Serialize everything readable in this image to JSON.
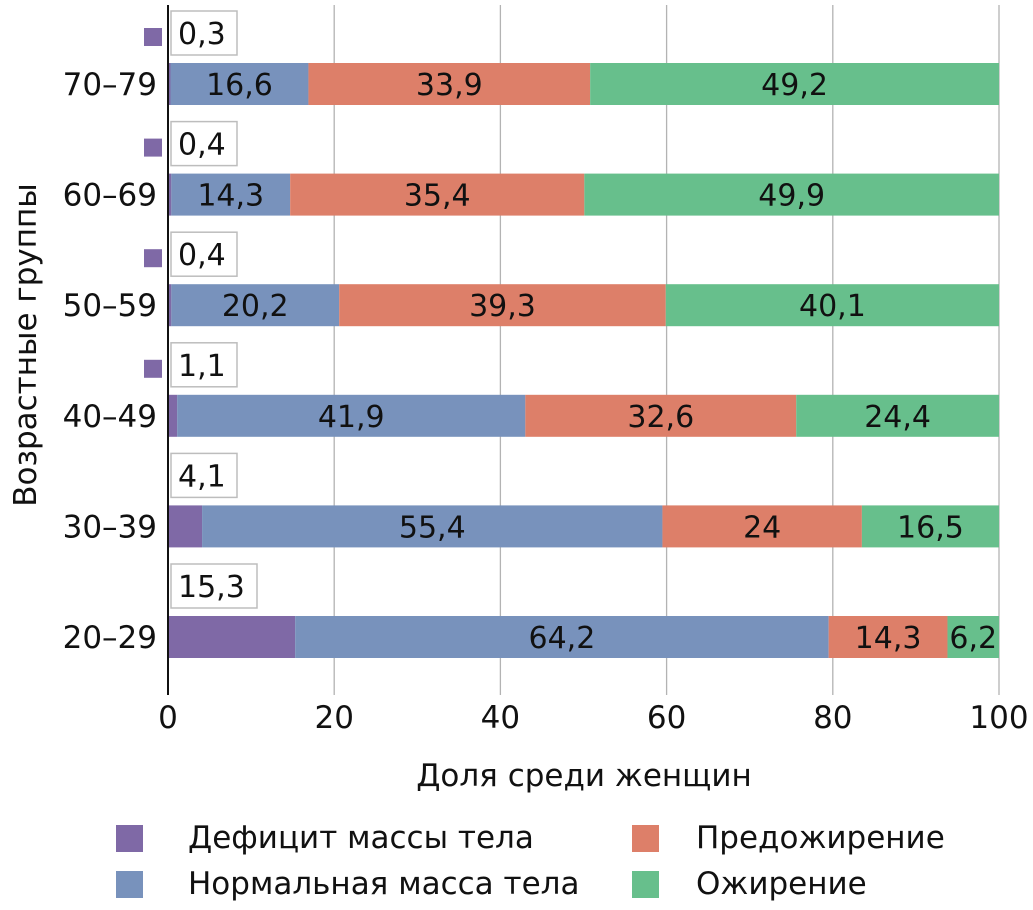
{
  "chart_data": {
    "type": "bar",
    "orientation": "horizontal",
    "stacked": true,
    "title": "",
    "xlabel": "Доля среди женщин",
    "ylabel": "Возрастные группы",
    "xlim": [
      0,
      100
    ],
    "xticks": [
      "0",
      "20",
      "40",
      "60",
      "80",
      "100"
    ],
    "xtick_values": [
      0,
      20,
      40,
      60,
      80,
      100
    ],
    "grid": true,
    "categories": [
      "70–79",
      "60–69",
      "50–59",
      "40–49",
      "30–39",
      "20–29"
    ],
    "series": [
      {
        "name": "Дефицит массы тела",
        "color": "#7f69a6",
        "values": [
          0.3,
          0.4,
          0.4,
          1.1,
          4.1,
          15.3
        ],
        "labels": [
          "0,3",
          "0,4",
          "0,4",
          "1,1",
          "4,1",
          "15,3"
        ]
      },
      {
        "name": "Нормальная масса тела",
        "color": "#7892bc",
        "values": [
          16.6,
          14.3,
          20.2,
          41.9,
          55.4,
          64.2
        ],
        "labels": [
          "16,6",
          "14,3",
          "20,2",
          "41,9",
          "55,4",
          "64,2"
        ]
      },
      {
        "name": "Предожирение",
        "color": "#dd7f69",
        "values": [
          33.9,
          35.4,
          39.3,
          32.6,
          24,
          14.3
        ],
        "labels": [
          "33,9",
          "35,4",
          "39,3",
          "32,6",
          "24",
          "14,3"
        ]
      },
      {
        "name": "Ожирение",
        "color": "#67bf8c",
        "values": [
          49.2,
          49.9,
          40.1,
          24.4,
          16.5,
          6.2
        ],
        "labels": [
          "49,2",
          "49,9",
          "40,1",
          "24,4",
          "16,5",
          "6,2"
        ]
      }
    ],
    "legend": {
      "position": "bottom",
      "items": [
        {
          "label": "Дефицит массы тела",
          "color": "#7f69a6"
        },
        {
          "label": "Предожирение",
          "color": "#dd7f69"
        },
        {
          "label": "Нормальная масса тела",
          "color": "#7892bc"
        },
        {
          "label": "Ожирение",
          "color": "#67bf8c"
        }
      ]
    }
  }
}
